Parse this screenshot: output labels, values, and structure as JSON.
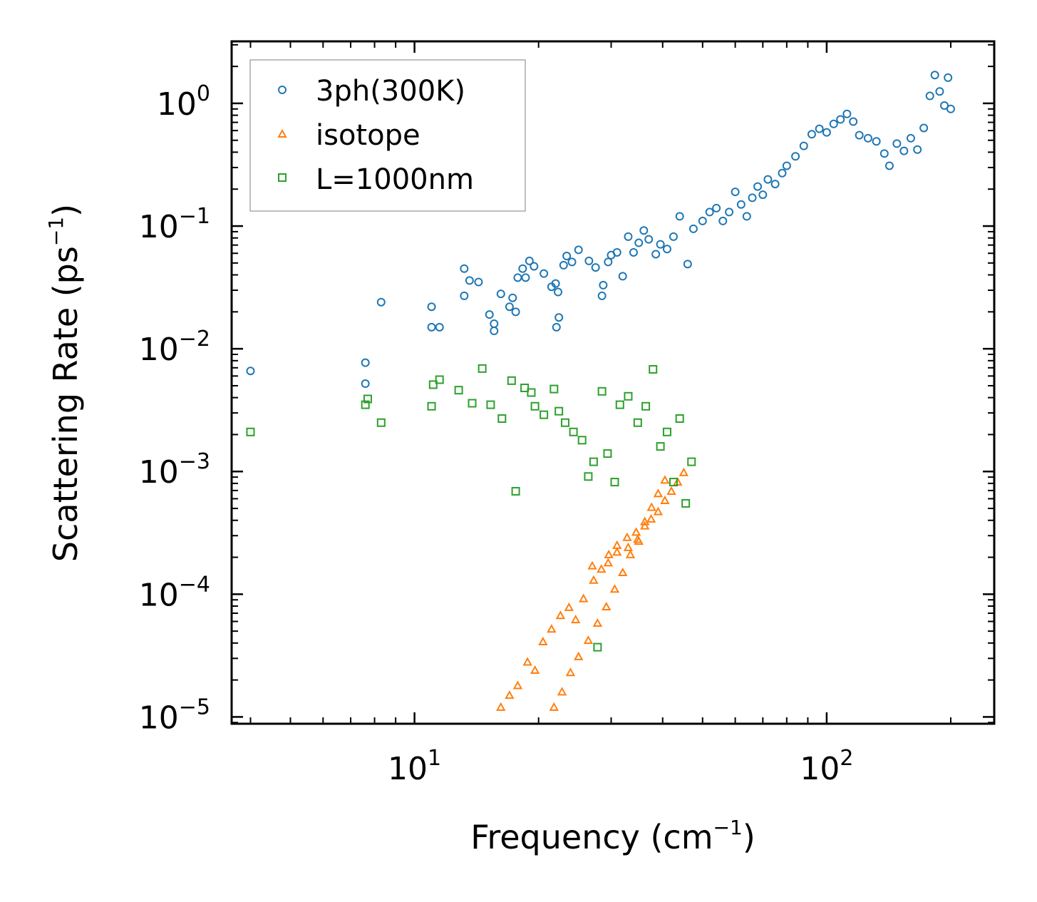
{
  "chart_data": {
    "type": "scatter",
    "xscale": "log",
    "yscale": "log",
    "xlabel": "Frequency (cm",
    "xlabel_sup": "−1",
    "xlabel_close": ")",
    "ylabel": "Scattering Rate (ps",
    "ylabel_sup": "−1",
    "ylabel_close": ")",
    "xlim": [
      3.6,
      255
    ],
    "ylim": [
      8.8e-06,
      3.2
    ],
    "x_ticks": [
      {
        "value": 10,
        "base": "10",
        "exp": "1"
      },
      {
        "value": 100,
        "base": "10",
        "exp": "2"
      }
    ],
    "y_ticks": [
      {
        "value": 1,
        "base": "10",
        "exp": "0"
      },
      {
        "value": 0.1,
        "base": "10",
        "exp": "−1"
      },
      {
        "value": 0.01,
        "base": "10",
        "exp": "−2"
      },
      {
        "value": 0.001,
        "base": "10",
        "exp": "−3"
      },
      {
        "value": 0.0001,
        "base": "10",
        "exp": "−4"
      },
      {
        "value": 1e-05,
        "base": "10",
        "exp": "−5"
      }
    ],
    "legend_position": "top-left",
    "series": [
      {
        "name": "3ph(300K)",
        "color": "#1f77b4",
        "marker": "circle",
        "points": [
          [
            4.0,
            0.0066
          ],
          [
            7.6,
            0.0077
          ],
          [
            7.6,
            0.0052
          ],
          [
            8.3,
            0.024
          ],
          [
            11.0,
            0.022
          ],
          [
            11.0,
            0.015
          ],
          [
            11.5,
            0.015
          ],
          [
            13.2,
            0.045
          ],
          [
            13.6,
            0.036
          ],
          [
            13.2,
            0.027
          ],
          [
            14.3,
            0.035
          ],
          [
            15.2,
            0.019
          ],
          [
            15.6,
            0.016
          ],
          [
            15.6,
            0.014
          ],
          [
            16.2,
            0.028
          ],
          [
            17.0,
            0.022
          ],
          [
            17.3,
            0.026
          ],
          [
            17.6,
            0.02
          ],
          [
            17.8,
            0.038
          ],
          [
            18.3,
            0.045
          ],
          [
            18.6,
            0.038
          ],
          [
            19.0,
            0.052
          ],
          [
            19.5,
            0.047
          ],
          [
            20.6,
            0.041
          ],
          [
            21.5,
            0.032
          ],
          [
            22.0,
            0.034
          ],
          [
            22.3,
            0.029
          ],
          [
            22.4,
            0.018
          ],
          [
            22.1,
            0.015
          ],
          [
            23.0,
            0.048
          ],
          [
            23.4,
            0.057
          ],
          [
            24.1,
            0.051
          ],
          [
            25.0,
            0.064
          ],
          [
            26.5,
            0.052
          ],
          [
            27.5,
            0.046
          ],
          [
            28.5,
            0.027
          ],
          [
            28.7,
            0.033
          ],
          [
            29.5,
            0.051
          ],
          [
            30.0,
            0.058
          ],
          [
            31.0,
            0.061
          ],
          [
            32.0,
            0.039
          ],
          [
            33.0,
            0.082
          ],
          [
            34.0,
            0.061
          ],
          [
            35.0,
            0.073
          ],
          [
            36.0,
            0.092
          ],
          [
            37.0,
            0.078
          ],
          [
            38.5,
            0.059
          ],
          [
            39.5,
            0.071
          ],
          [
            41.0,
            0.065
          ],
          [
            42.5,
            0.082
          ],
          [
            44.0,
            0.12
          ],
          [
            46.0,
            0.049
          ],
          [
            47.5,
            0.095
          ],
          [
            50.0,
            0.11
          ],
          [
            52.0,
            0.13
          ],
          [
            54.0,
            0.14
          ],
          [
            56.0,
            0.11
          ],
          [
            58.0,
            0.13
          ],
          [
            60.0,
            0.19
          ],
          [
            62.0,
            0.15
          ],
          [
            64.0,
            0.12
          ],
          [
            66.0,
            0.17
          ],
          [
            68.0,
            0.21
          ],
          [
            70.0,
            0.18
          ],
          [
            72.0,
            0.24
          ],
          [
            75.0,
            0.22
          ],
          [
            78.0,
            0.27
          ],
          [
            80.0,
            0.31
          ],
          [
            84.0,
            0.37
          ],
          [
            88.0,
            0.45
          ],
          [
            92.0,
            0.56
          ],
          [
            96.0,
            0.62
          ],
          [
            100.0,
            0.58
          ],
          [
            104.0,
            0.68
          ],
          [
            108.0,
            0.74
          ],
          [
            112.0,
            0.82
          ],
          [
            116.0,
            0.71
          ],
          [
            120.0,
            0.55
          ],
          [
            126.0,
            0.52
          ],
          [
            132.0,
            0.49
          ],
          [
            138.0,
            0.39
          ],
          [
            142.0,
            0.31
          ],
          [
            148.0,
            0.47
          ],
          [
            154.0,
            0.41
          ],
          [
            160.0,
            0.52
          ],
          [
            166.0,
            0.42
          ],
          [
            172.0,
            0.63
          ],
          [
            178.0,
            1.15
          ],
          [
            183.0,
            1.7
          ],
          [
            188.0,
            1.25
          ],
          [
            193.0,
            0.96
          ],
          [
            197.0,
            1.62
          ],
          [
            200.0,
            0.9
          ]
        ]
      },
      {
        "name": "isotope",
        "color": "#ff7f0e",
        "marker": "triangle",
        "points": [
          [
            16.2,
            1.2e-05
          ],
          [
            17.0,
            1.5e-05
          ],
          [
            17.8,
            1.8e-05
          ],
          [
            18.8,
            2.8e-05
          ],
          [
            19.6,
            2.4e-05
          ],
          [
            20.5,
            4.1e-05
          ],
          [
            21.5,
            5.2e-05
          ],
          [
            22.6,
            6.7e-05
          ],
          [
            23.7,
            7.8e-05
          ],
          [
            24.6,
            6.2e-05
          ],
          [
            25.7,
            9.2e-05
          ],
          [
            27.2,
            0.00013
          ],
          [
            28.4,
            0.00016
          ],
          [
            29.6,
            0.00021
          ],
          [
            31.0,
            0.00025
          ],
          [
            32.8,
            0.00029
          ],
          [
            34.5,
            0.00032
          ],
          [
            36.2,
            0.00036
          ],
          [
            37.5,
            0.00041
          ],
          [
            39.0,
            0.00047
          ],
          [
            40.5,
            0.00058
          ],
          [
            42.0,
            0.00069
          ],
          [
            43.5,
            0.00082
          ],
          [
            45.0,
            0.00098
          ],
          [
            21.8,
            1.2e-05
          ],
          [
            22.8,
            1.6e-05
          ],
          [
            23.9,
            2.3e-05
          ],
          [
            25.0,
            3.1e-05
          ],
          [
            26.4,
            4.2e-05
          ],
          [
            27.8,
            5.8e-05
          ],
          [
            29.2,
            7.9e-05
          ],
          [
            30.6,
            0.00011
          ],
          [
            32.0,
            0.00015
          ],
          [
            33.4,
            0.00021
          ],
          [
            34.8,
            0.00028
          ],
          [
            36.2,
            0.00039
          ],
          [
            37.6,
            0.00051
          ],
          [
            39.0,
            0.00066
          ],
          [
            40.5,
            0.00085
          ],
          [
            27.0,
            0.00017
          ],
          [
            29.5,
            0.00018
          ],
          [
            31.0,
            0.00022
          ],
          [
            33.0,
            0.00024
          ],
          [
            35.0,
            0.00027
          ]
        ]
      },
      {
        "name": "L=1000nm",
        "color": "#2ca02c",
        "marker": "square",
        "points": [
          [
            4.0,
            0.0021
          ],
          [
            7.6,
            0.0035
          ],
          [
            7.7,
            0.0039
          ],
          [
            8.3,
            0.0025
          ],
          [
            11.0,
            0.0034
          ],
          [
            11.1,
            0.0051
          ],
          [
            11.5,
            0.0056
          ],
          [
            12.8,
            0.0046
          ],
          [
            13.8,
            0.0036
          ],
          [
            14.6,
            0.0069
          ],
          [
            15.3,
            0.0035
          ],
          [
            16.3,
            0.0027
          ],
          [
            17.2,
            0.0055
          ],
          [
            17.6,
            0.00069
          ],
          [
            18.5,
            0.0048
          ],
          [
            19.2,
            0.0044
          ],
          [
            19.6,
            0.0034
          ],
          [
            20.6,
            0.0029
          ],
          [
            21.8,
            0.0047
          ],
          [
            22.4,
            0.0031
          ],
          [
            23.2,
            0.0025
          ],
          [
            24.3,
            0.0021
          ],
          [
            25.5,
            0.0018
          ],
          [
            26.4,
            0.00091
          ],
          [
            27.2,
            0.0012
          ],
          [
            27.8,
            3.7e-05
          ],
          [
            28.5,
            0.0045
          ],
          [
            29.4,
            0.0014
          ],
          [
            30.6,
            0.00082
          ],
          [
            31.5,
            0.0035
          ],
          [
            33.0,
            0.0041
          ],
          [
            34.8,
            0.0025
          ],
          [
            36.4,
            0.0034
          ],
          [
            37.9,
            0.0068
          ],
          [
            39.5,
            0.0016
          ],
          [
            41.0,
            0.0021
          ],
          [
            42.5,
            0.00082
          ],
          [
            44.0,
            0.0027
          ],
          [
            45.5,
            0.00055
          ],
          [
            47.0,
            0.0012
          ]
        ]
      }
    ]
  }
}
